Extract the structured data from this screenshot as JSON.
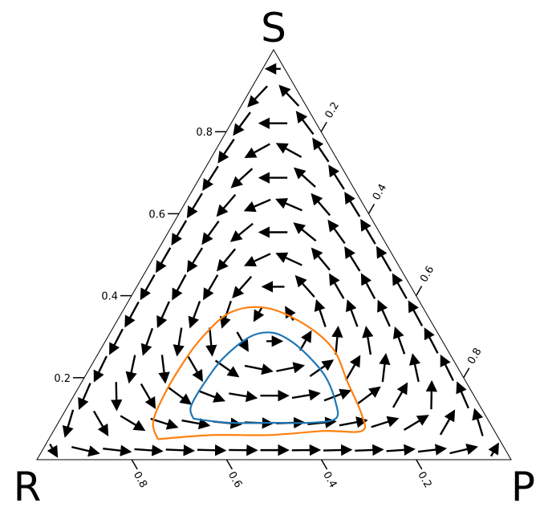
{
  "chart_data": {
    "type": "ternary-vector-field",
    "corners": {
      "top": "S",
      "left": "R",
      "right": "P"
    },
    "axes": {
      "left": {
        "ticks": [
          "0.2",
          "0.4",
          "0.6",
          "0.8"
        ],
        "values": [
          0.2,
          0.4,
          0.6,
          0.8
        ]
      },
      "right": {
        "ticks": [
          "0.2",
          "0.4",
          "0.6",
          "0.8"
        ],
        "values": [
          0.2,
          0.4,
          0.6,
          0.8
        ]
      },
      "bottom": {
        "ticks": [
          "0.8",
          "0.6",
          "0.4",
          "0.2"
        ],
        "values": [
          0.8,
          0.6,
          0.4,
          0.2
        ]
      }
    },
    "field": {
      "interior_fixed_point": {
        "R": 0.333,
        "P": 0.333,
        "S": 0.333
      },
      "rotation": "counterclockwise"
    },
    "series": [
      {
        "color": "#1f77b4",
        "points_RPS": [
          [
            0.62,
            0.28,
            0.1
          ],
          [
            0.55,
            0.36,
            0.09
          ],
          [
            0.46,
            0.45,
            0.09
          ],
          [
            0.38,
            0.53,
            0.09
          ],
          [
            0.32,
            0.58,
            0.1
          ],
          [
            0.3,
            0.56,
            0.14
          ],
          [
            0.29,
            0.51,
            0.2
          ],
          [
            0.3,
            0.45,
            0.25
          ],
          [
            0.32,
            0.39,
            0.29
          ],
          [
            0.35,
            0.34,
            0.31
          ],
          [
            0.4,
            0.3,
            0.3
          ],
          [
            0.48,
            0.27,
            0.25
          ],
          [
            0.55,
            0.26,
            0.19
          ],
          [
            0.61,
            0.26,
            0.13
          ],
          [
            0.62,
            0.28,
            0.1
          ]
        ]
      },
      {
        "color": "#ff7f0e",
        "points_RPS": [
          [
            0.72,
            0.23,
            0.05
          ],
          [
            0.6,
            0.34,
            0.06
          ],
          [
            0.48,
            0.46,
            0.06
          ],
          [
            0.36,
            0.57,
            0.07
          ],
          [
            0.28,
            0.65,
            0.07
          ],
          [
            0.26,
            0.63,
            0.11
          ],
          [
            0.25,
            0.56,
            0.19
          ],
          [
            0.24,
            0.49,
            0.27
          ],
          [
            0.27,
            0.4,
            0.33
          ],
          [
            0.33,
            0.3,
            0.37
          ],
          [
            0.41,
            0.23,
            0.36
          ],
          [
            0.5,
            0.2,
            0.3
          ],
          [
            0.58,
            0.19,
            0.23
          ],
          [
            0.66,
            0.19,
            0.15
          ],
          [
            0.71,
            0.2,
            0.09
          ],
          [
            0.72,
            0.23,
            0.05
          ]
        ]
      }
    ]
  }
}
